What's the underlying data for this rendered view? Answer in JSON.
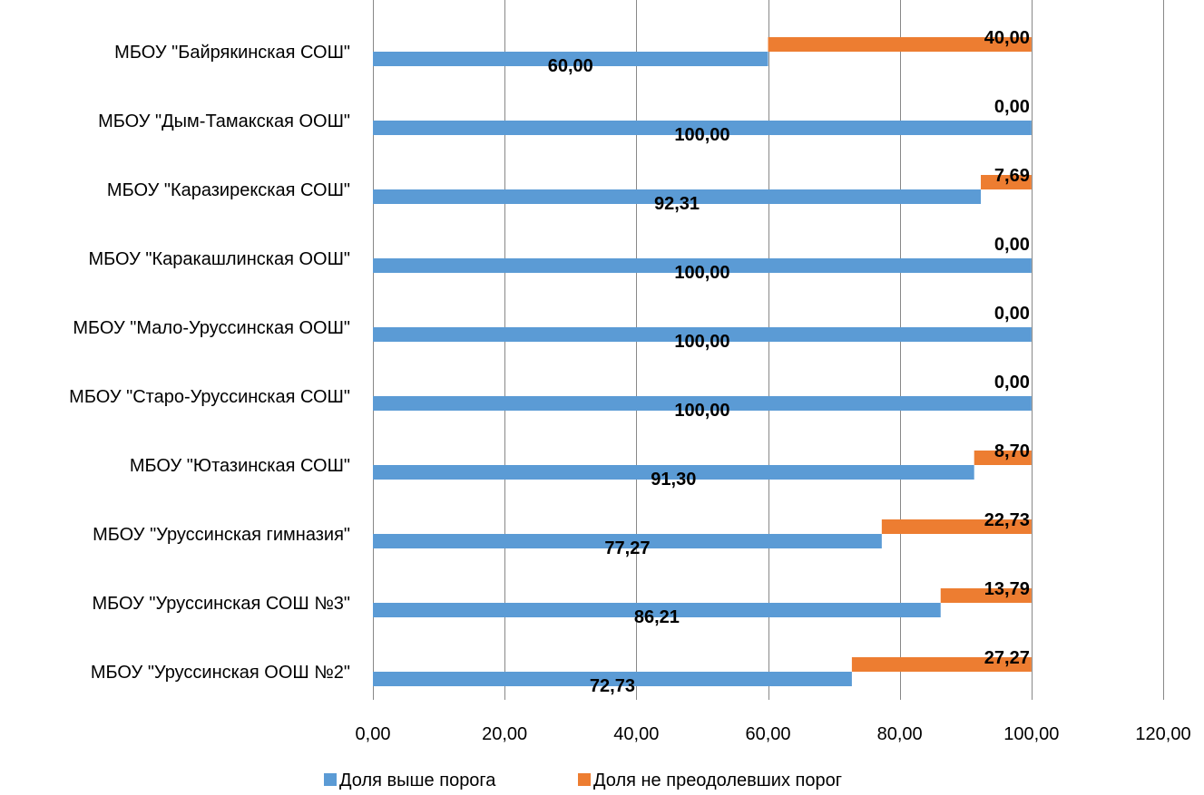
{
  "chart_data": {
    "type": "bar",
    "orientation": "horizontal",
    "categories": [
      "МБОУ \"Байрякинская СОШ\"",
      "МБОУ \"Дым-Тамакская ООШ\"",
      "МБОУ \"Каразирекская СОШ\"",
      "МБОУ \"Каракашлинская ООШ\"",
      "МБОУ \"Мало-Уруссинская ООШ\"",
      "МБОУ \"Старо-Уруссинская СОШ\"",
      "МБОУ \"Ютазинская СОШ\"",
      "МБОУ \"Уруссинская гимназия\"",
      "МБОУ \"Уруссинская СОШ №3\"",
      "МБОУ \"Уруссинская ООШ №2\""
    ],
    "series": [
      {
        "name": "Доля выше порога",
        "color": "#5B9BD5",
        "values": [
          60.0,
          100.0,
          92.31,
          100.0,
          100.0,
          100.0,
          91.3,
          77.27,
          86.21,
          72.73
        ],
        "labels": [
          "60,00",
          "100,00",
          "92,31",
          "100,00",
          "100,00",
          "100,00",
          "91,30",
          "77,27",
          "86,21",
          "72,73"
        ]
      },
      {
        "name": "Доля не преодолевших порог",
        "color": "#ED7D31",
        "values": [
          40.0,
          0.0,
          7.69,
          0.0,
          0.0,
          0.0,
          8.7,
          22.73,
          13.79,
          27.27
        ],
        "labels": [
          "40,00",
          "0,00",
          "7,69",
          "0,00",
          "0,00",
          "0,00",
          "8,70",
          "22,73",
          "13,79",
          "27,27"
        ]
      }
    ],
    "xlim": [
      0,
      120
    ],
    "xticks": [
      0,
      20,
      40,
      60,
      80,
      100,
      120
    ],
    "xtick_labels": [
      "0,00",
      "20,00",
      "40,00",
      "60,00",
      "80,00",
      "100,00",
      "120,00"
    ],
    "grid": true,
    "legend_position": "bottom",
    "title": "",
    "xlabel": "",
    "ylabel": ""
  }
}
